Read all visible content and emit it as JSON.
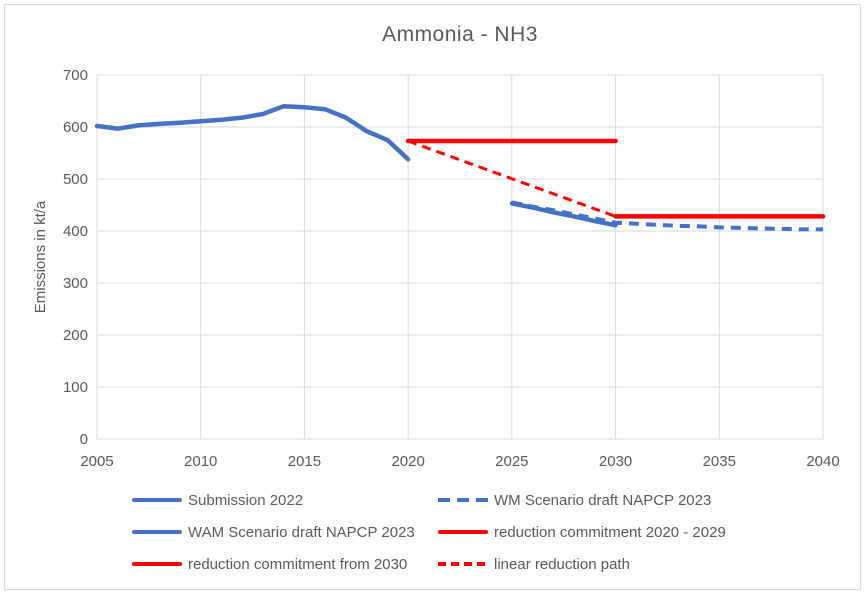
{
  "chart_data": {
    "type": "line",
    "title": "Ammonia - NH3",
    "xlabel": "",
    "ylabel": "Emissions in kt/a",
    "xlim": [
      2005,
      2040
    ],
    "ylim": [
      0,
      700
    ],
    "xticks": [
      2005,
      2010,
      2015,
      2020,
      2025,
      2030,
      2035,
      2040
    ],
    "yticks": [
      0,
      100,
      200,
      300,
      400,
      500,
      600,
      700
    ],
    "grid": true,
    "legend_position": "bottom",
    "colors": {
      "blue": "#4472C4",
      "red": "#FF0000",
      "grid": "#D9D9D9",
      "text": "#595959"
    },
    "series": [
      {
        "name": "Submission 2022",
        "color": "#4472C4",
        "line_style": "solid",
        "width": 4.5,
        "x": [
          2005,
          2006,
          2007,
          2008,
          2009,
          2010,
          2011,
          2012,
          2013,
          2014,
          2015,
          2016,
          2017,
          2018,
          2019,
          2020
        ],
        "values": [
          602,
          597,
          603,
          606,
          608,
          611,
          614,
          618,
          625,
          640,
          638,
          634,
          618,
          592,
          575,
          538
        ]
      },
      {
        "name": "WM Scenario draft NAPCP 2023",
        "color": "#4472C4",
        "line_style": "dashed",
        "width": 4,
        "x": [
          2025,
          2026,
          2027,
          2028,
          2029,
          2030,
          2031,
          2032,
          2033,
          2034,
          2035,
          2036,
          2037,
          2038,
          2039,
          2040
        ],
        "values": [
          455,
          447,
          440,
          432,
          424,
          416,
          414,
          412,
          410,
          409,
          407,
          406,
          405,
          404,
          403,
          403
        ]
      },
      {
        "name": "WAM Scenario draft NAPCP 2023",
        "color": "#4472C4",
        "line_style": "solid",
        "width": 4.5,
        "x": [
          2025,
          2026,
          2027,
          2028,
          2029,
          2030
        ],
        "values": [
          453,
          445,
          436,
          428,
          419,
          411
        ]
      },
      {
        "name": "reduction commitment 2020 - 2029",
        "color": "#FF0000",
        "line_style": "solid",
        "width": 4.5,
        "x": [
          2020,
          2030
        ],
        "values": [
          573,
          573
        ]
      },
      {
        "name": "reduction commitment from 2030",
        "color": "#FF0000",
        "line_style": "solid",
        "width": 4.5,
        "x": [
          2030,
          2040
        ],
        "values": [
          428,
          428
        ]
      },
      {
        "name": "linear reduction path",
        "color": "#FF0000",
        "line_style": "dashed",
        "width": 3,
        "x": [
          2020,
          2030
        ],
        "values": [
          573,
          428
        ]
      }
    ]
  }
}
